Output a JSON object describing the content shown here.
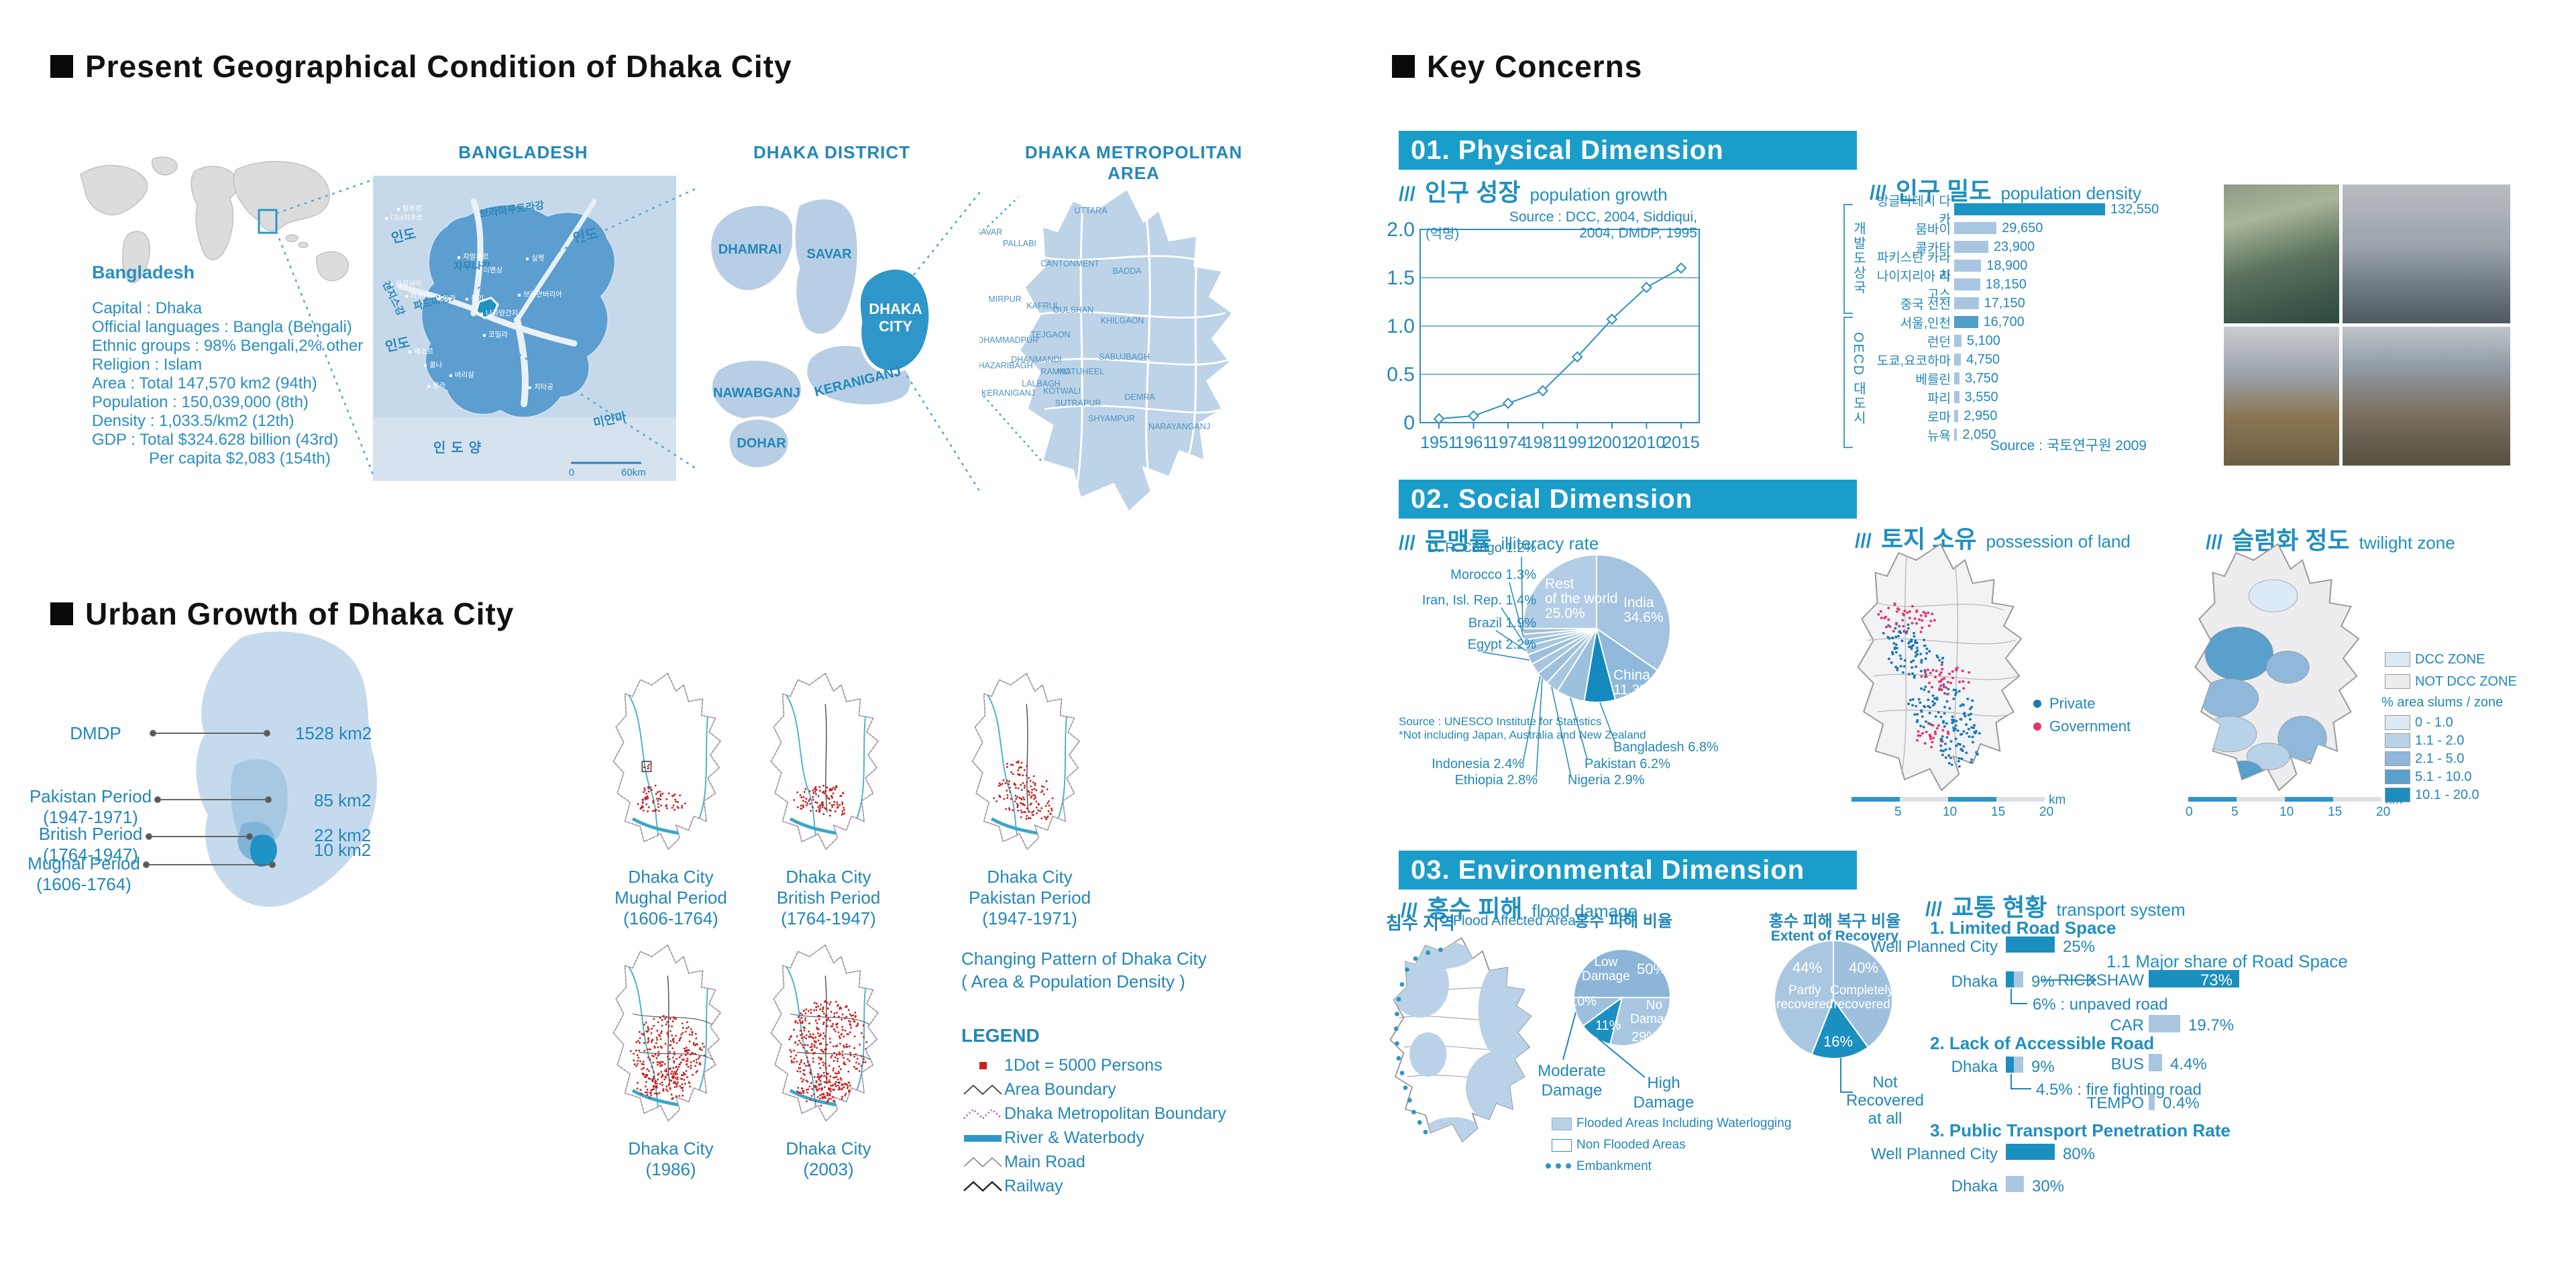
{
  "titles": {
    "geo": "Present Geographical Condition of Dhaka City",
    "urban": "Urban Growth of Dhaka City",
    "concerns": "Key Concerns"
  },
  "geo": {
    "bangladesh_label": "BANGLADESH",
    "map_labels": {
      "india_nw": "인도",
      "india_e": "인도",
      "india_w": "인도",
      "myanmar": "미얀마",
      "ocean": "인도양",
      "rivers": [
        "갠지스강",
        "브라마푸트라강",
        "자무나강",
        "파드마강"
      ],
      "cities": [
        "랑푸르",
        "디나지푸르",
        "자말푸르",
        "미멘싱",
        "실헷",
        "라지샤히",
        "파브나",
        "다카",
        "퉁기",
        "나라양간지",
        "브라만바리아",
        "코밀라",
        "제소르",
        "쿨나",
        "바리살",
        "몽라",
        "치타공"
      ],
      "scale0": "0",
      "scale1": "60km"
    },
    "facts": {
      "title": "Bangladesh",
      "lines": [
        "Capital :  Dhaka",
        "Official languages : Bangla (Bengali)",
        "Ethnic groups : 98% Bengali,2% other",
        "Religion : Islam",
        "Area : Total 147,570 km2 (94th)",
        "Population : 150,039,000 (8th)",
        "Density : 1,033.5/km2 (12th)",
        "GDP  : Total $324.628 billion (43rd)",
        "Per capita $2,083 (154th)"
      ]
    },
    "district": {
      "title": "DHAKA DISTRICT",
      "areas": [
        "DHAMRAI",
        "SAVAR",
        "DHAKA CITY",
        "KERANIGANJ",
        "NAWABGANJ",
        "DOHAR"
      ]
    },
    "metro": {
      "title": "DHAKA METROPOLITAN AREA",
      "areas": [
        "SAVAR",
        "UTTARA",
        "PALLABI",
        "CANTONMENT",
        "BADDA",
        "MIRPUR",
        "KAFRUL",
        "GULSHAN",
        "KHILGAON",
        "TEJGAON",
        "MOHAMMADPUR",
        "DHANMANDI",
        "SABUJBAGH",
        "HAZARIBAGH",
        "RAMNA",
        "MOTIJHEEL",
        "LALBAGH",
        "KOTWALI",
        "KERANIGANJ",
        "SUTRAPUR",
        "DEMRA",
        "SHYAMPUR",
        "NARAYANGANJ"
      ]
    }
  },
  "urban": {
    "periods": [
      {
        "label": "DMDP",
        "sub": "",
        "value": "1528  km2"
      },
      {
        "label": "Pakistan  Period",
        "sub": "(1947-1971)",
        "value": "85  km2"
      },
      {
        "label": "British  Period",
        "sub": "(1764-1947)",
        "value": "22  km2"
      },
      {
        "label": "Mughal  Period",
        "sub": "(1606-1764)",
        "value": "10  km2"
      }
    ],
    "maps": [
      {
        "caption": [
          "Dhaka  City",
          "Mughal  Period",
          "(1606-1764)"
        ]
      },
      {
        "caption": [
          "Dhaka  City",
          "British  Period",
          "(1764-1947)"
        ]
      },
      {
        "caption": [
          "Dhaka  City",
          "Pakistan  Period",
          "(1947-1971)"
        ]
      },
      {
        "caption": [
          "Dhaka  City",
          "(1986)"
        ]
      },
      {
        "caption": [
          "Dhaka  City",
          "(2003)"
        ]
      }
    ],
    "pattern_note": [
      "Changing  Pattern  of  Dhaka  City",
      "(  Area  &  Population  Density  )"
    ],
    "legend_title": "LEGEND",
    "legend_items": [
      "1Dot  =  5000  Persons",
      "Area  Boundary",
      "Dhaka  Metropolitan  Boundary",
      "River  &  Waterbody",
      "Main  Road",
      "Railway"
    ]
  },
  "concerns": {
    "slashes": "///",
    "bands": [
      "01. Physical Dimension",
      "02. Social Dimension",
      "03. Environmental Dimension"
    ],
    "growth_head": {
      "kor": "인구 성장",
      "eng": "population growth"
    },
    "density_head": {
      "kor": "인구 밀도",
      "eng": "population density"
    },
    "illiteracy_head": {
      "kor": "문맹률",
      "eng": "illiteracy rate"
    },
    "land_head": {
      "kor": "토지 소유",
      "eng": "possession of land"
    },
    "slum_head": {
      "kor": "슬럼화 정도",
      "eng": "twilight zone"
    },
    "flood_head": {
      "kor": "홍수 피해",
      "eng": "flood damage"
    },
    "transport_head": {
      "kor": "교통 현황",
      "eng": "transport system"
    },
    "flood_map": {
      "kor": "침수 지역",
      "eng": "Flood Affected Area",
      "legend": [
        "Flooded Areas Including Waterlogging",
        "Non Flooded Areas",
        "Embankment"
      ]
    },
    "land_legend": [
      "Private",
      "Government"
    ],
    "slum_legend": {
      "zones": [
        "DCC ZONE",
        "NOT DCC ZONE"
      ],
      "note": "% area slums / zone",
      "classes": [
        "0 - 1.0",
        "1.1 - 2.0",
        "2.1 - 5.0",
        "5.1 - 10.0",
        "10.1 - 20.0"
      ]
    },
    "scalebar": {
      "zero": "0",
      "ticks": [
        "5",
        "10",
        "15",
        "20"
      ],
      "unit": "km"
    }
  },
  "chart_data": [
    {
      "id": "population_growth",
      "type": "line",
      "source": "Source : DCC, 2004, Siddiqui, 2004, DMDP, 1995",
      "unit": "(억명)",
      "x": [
        "1951",
        "1961",
        "1974",
        "1981",
        "1991",
        "2001",
        "2010",
        "2015"
      ],
      "values": [
        0.04,
        0.07,
        0.2,
        0.33,
        0.68,
        1.07,
        1.4,
        1.6
      ],
      "ylim": [
        0,
        2.0
      ],
      "yticks": [
        "0",
        "0.5",
        "1.0",
        "1.5",
        "2.0"
      ]
    },
    {
      "id": "population_density",
      "type": "bar",
      "source": "Source : 국토연구원 2009",
      "groups": [
        "개발도상국",
        "OECD 대도시"
      ],
      "categories": [
        "방글라데시 다카",
        "뭄바이",
        "콜카타",
        "파키스탄 카라치",
        "나이지리아 라고스",
        "중국 선전",
        "서울,인천",
        "런던",
        "도쿄,요코하마",
        "베를린",
        "파리",
        "로마",
        "뉴욕"
      ],
      "values": [
        132550,
        29650,
        23900,
        18900,
        18150,
        17150,
        16700,
        5100,
        4750,
        3750,
        3550,
        2950,
        2050
      ],
      "value_labels": [
        "132,550",
        "29,650",
        "23,900",
        "18,900",
        "18,150",
        "17,150",
        "16,700",
        "5,100",
        "4,750",
        "3,750",
        "3,550",
        "2,950",
        "2,050"
      ]
    },
    {
      "id": "illiteracy",
      "type": "pie",
      "source_lines": [
        "Source : UNESCO Institute for Statistics",
        "*Not including Japan, Australia and New Zealand"
      ],
      "slices": [
        {
          "name": "India",
          "value": 34.6
        },
        {
          "name": "China",
          "value": 11.3
        },
        {
          "name": "Bangladesh",
          "value": 6.8,
          "dark": true
        },
        {
          "name": "Pakistan",
          "value": 6.2
        },
        {
          "name": "Nigeria",
          "value": 2.9
        },
        {
          "name": "Ethiopia",
          "value": 2.8
        },
        {
          "name": "Indonesia",
          "value": 2.4
        },
        {
          "name": "Egypt",
          "value": 2.2
        },
        {
          "name": "Brazil",
          "value": 1.9
        },
        {
          "name": "Iran, Isl. Rep.",
          "value": 1.4
        },
        {
          "name": "Morocco",
          "value": 1.3
        },
        {
          "name": "D. R. Congo",
          "value": 1.2
        },
        {
          "name": "Rest of the world",
          "value": 25.0
        }
      ],
      "inside_labels": {
        "rest": [
          "Rest",
          "of the world",
          "25.0%"
        ],
        "india": [
          "India",
          "34.6%"
        ],
        "china": [
          "China",
          "11.3%"
        ]
      },
      "callouts_left": [
        "D. R. Congo 1.2%",
        "Morocco 1.3%",
        "Iran, Isl. Rep. 1.4%",
        "Brazil 1.9%",
        "Egypt 2.2%"
      ],
      "callouts_bottom": [
        "Indonesia 2.4%",
        "Ethiopia 2.8%",
        "Nigeria 2.9%",
        "Pakistan 6.2%",
        "Bangladesh 6.8%"
      ]
    },
    {
      "id": "flood_damage_ratio",
      "type": "pie",
      "title": "홍수 피해 비율",
      "start_deg": 270,
      "slices": [
        {
          "name": "Low Damage",
          "value": 50
        },
        {
          "name": "No Damage",
          "value": 29
        },
        {
          "name": "High Damage",
          "value": 11,
          "dark": true
        },
        {
          "name": "Moderate Damage",
          "value": 10
        }
      ],
      "labels": {
        "low": [
          "Low",
          "Damage"
        ],
        "low_pct": "50%",
        "no": [
          "No",
          "Damage"
        ],
        "no_pct": "29%",
        "mod_pct": "10%",
        "high_pct": "11%",
        "moderate": [
          "Moderate",
          "Damage"
        ],
        "high": [
          "High",
          "Damage"
        ]
      }
    },
    {
      "id": "flood_recovery",
      "type": "pie",
      "title_kor": "홍수 피해 복구 비율",
      "title_eng": "Extent of Recovery",
      "start_deg": 0,
      "slices": [
        {
          "name": "Completely recovered",
          "value": 40
        },
        {
          "name": "Not Recovered at all",
          "value": 16,
          "dark": true
        },
        {
          "name": "Partly recovered",
          "value": 44
        }
      ],
      "labels": {
        "partly_pct": "44%",
        "partly": [
          "Partly",
          "recovered"
        ],
        "completely_pct": "40%",
        "completely": [
          "Completely",
          "recovered"
        ],
        "not_pct": "16%",
        "not": [
          "Not",
          "Recovered",
          "at all"
        ]
      }
    },
    {
      "id": "transport",
      "type": "bar-groups",
      "groups": [
        {
          "heading": "1. Limited Road Space",
          "rows": [
            {
              "label": "Well Planned City",
              "value": 25,
              "text": "25%",
              "dark": true
            },
            {
              "label": "Dhaka",
              "value": 9,
              "text": "9%",
              "dark": true,
              "note": "6% : unpaved road"
            }
          ]
        },
        {
          "heading": "1.1 Major share of Road Space",
          "rows": [
            {
              "label": "RICKSHAW",
              "value": 73,
              "text": "73%",
              "dark": true,
              "inside": true
            },
            {
              "label": "CAR",
              "value": 19.7,
              "text": "19.7%"
            },
            {
              "label": "BUS",
              "value": 4.4,
              "text": "4.4%"
            },
            {
              "label": "TEMPO",
              "value": 0.4,
              "text": "0.4%"
            }
          ]
        },
        {
          "heading": "2. Lack of Accessible Road",
          "rows": [
            {
              "label": "Dhaka",
              "value": 9,
              "text": "9%",
              "dark": true,
              "note": "4.5% : fire fighting road"
            }
          ]
        },
        {
          "heading": "3. Public Transport Penetration Rate",
          "rows": [
            {
              "label": "Well Planned City",
              "value": 80,
              "text": "80%",
              "dark": true
            },
            {
              "label": "Dhaka",
              "value": 30,
              "text": "30%"
            }
          ]
        }
      ]
    }
  ],
  "colors": {
    "accent": "#1b9dc9",
    "text_blue": "#2287ba",
    "bar_light": "#a9c6e1",
    "bar_mid": "#4f9fc7",
    "pie_dark": "#1489bd",
    "dot_private": "#1f77b4",
    "dot_government": "#e8336d",
    "map_light": "#bdd3e7",
    "map_dark": "#2e96c8"
  }
}
